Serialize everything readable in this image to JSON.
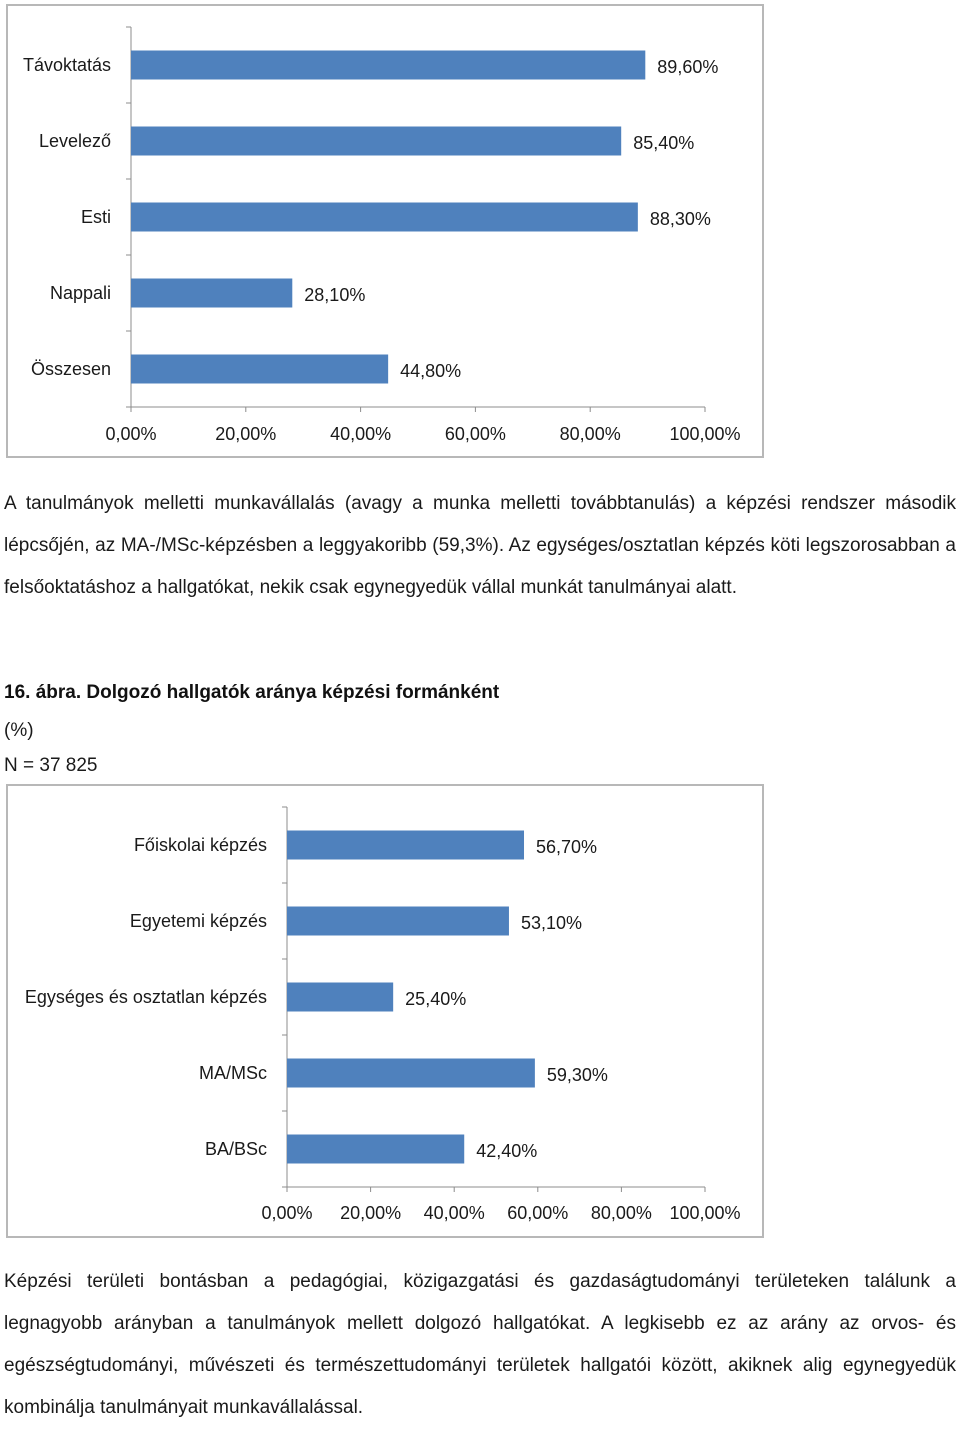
{
  "chart_data": [
    {
      "type": "bar",
      "orientation": "horizontal",
      "categories": [
        "Távoktatás",
        "Levelező",
        "Esti",
        "Nappali",
        "Összesen"
      ],
      "values": [
        89.6,
        85.4,
        88.3,
        28.1,
        44.8
      ],
      "value_labels": [
        "89,60%",
        "85,40%",
        "88,30%",
        "28,10%",
        "44,80%"
      ],
      "xlim": [
        0,
        100
      ],
      "x_ticks": [
        "0,00%",
        "20,00%",
        "40,00%",
        "60,00%",
        "80,00%",
        "100,00%"
      ],
      "grid": false,
      "bar_color": "#4f81bd"
    },
    {
      "type": "bar",
      "orientation": "horizontal",
      "categories": [
        "Főiskolai képzés",
        "Egyetemi képzés",
        "Egységes és osztatlan képzés",
        "MA/MSc",
        "BA/BSc"
      ],
      "values": [
        56.7,
        53.1,
        25.4,
        59.3,
        42.4
      ],
      "value_labels": [
        "56,70%",
        "53,10%",
        "25,40%",
        "59,30%",
        "42,40%"
      ],
      "xlim": [
        0,
        100
      ],
      "x_ticks": [
        "0,00%",
        "20,00%",
        "40,00%",
        "60,00%",
        "80,00%",
        "100,00%"
      ],
      "grid": false,
      "bar_color": "#4f81bd"
    }
  ],
  "text": {
    "paragraph1": "A tanulmányok melletti munkavállalás (avagy a munka melletti továbbtanulás) a képzési rendszer második lépcsőjén, az MA-/MSc-képzésben a leggyakoribb (59,3%). Az egységes/osztatlan képzés köti legszorosabban a felsőoktatáshoz a hallgatókat, nekik csak egynegyedük vállal munkát tanulmányai alatt.",
    "figure_caption": "16. ábra. Dolgozó hallgatók aránya képzési formánként",
    "figure_unit": "(%)",
    "figure_n": "N = 37 825",
    "paragraph2": "Képzési területi bontásban a pedagógiai, közigazgatási és gazdaságtudományi területeken találunk a legnagyobb arányban a tanulmányok mellett dolgozó hallgatókat. A legkisebb ez az arány az orvos- és egészségtudományi, művészeti és természettudományi területek hallgatói között, akiknek alig egynegyedük kombinálja tanulmányait munkavállalással."
  }
}
